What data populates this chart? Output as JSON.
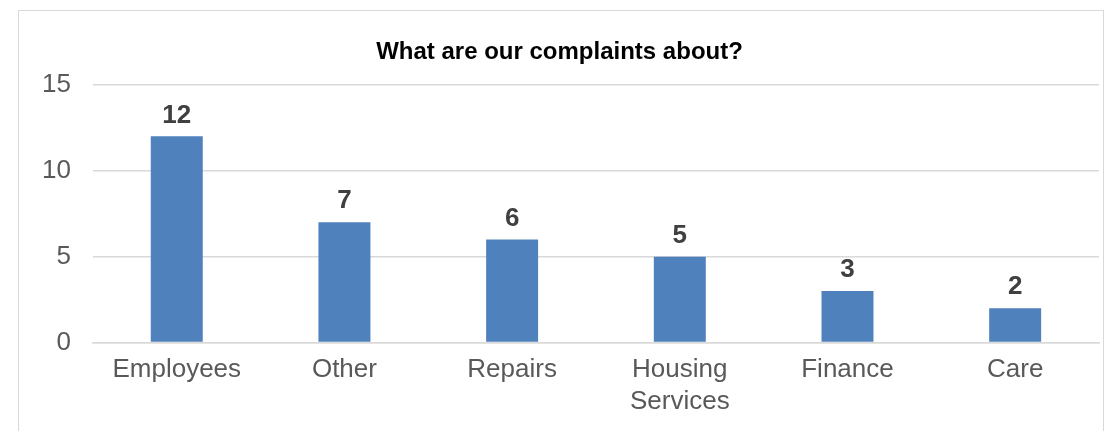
{
  "chart_data": {
    "type": "bar",
    "title": "What are our complaints about?",
    "categories": [
      "Employees",
      "Other",
      "Repairs",
      "Housing Services",
      "Finance",
      "Care"
    ],
    "values": [
      12,
      7,
      6,
      5,
      3,
      2
    ],
    "color": "#4f81bd",
    "ylim": [
      0,
      15
    ],
    "yticks": [
      0,
      5,
      10,
      15
    ],
    "grid": "y",
    "data_labels": true,
    "legend": false
  }
}
